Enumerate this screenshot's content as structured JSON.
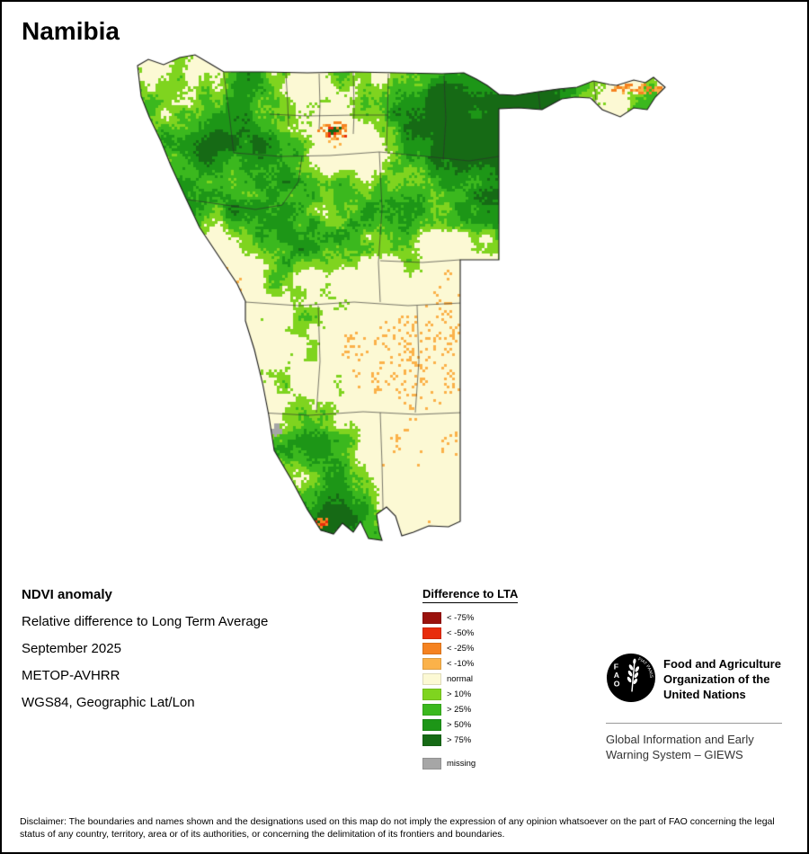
{
  "page": {
    "title": "Namibia"
  },
  "info": {
    "heading": "NDVI anomaly",
    "lines": [
      "Relative difference to Long Term Average",
      "September 2025",
      "METOP-AVHRR",
      "WGS84, Geographic Lat/Lon"
    ]
  },
  "legend": {
    "title": "Difference to LTA",
    "items": [
      {
        "key": "m75",
        "label": "< -75%",
        "color": "#9b120d"
      },
      {
        "key": "m50",
        "label": "< -50%",
        "color": "#e82c0c"
      },
      {
        "key": "m25",
        "label": "< -25%",
        "color": "#f58220"
      },
      {
        "key": "m10",
        "label": "< -10%",
        "color": "#fbb24a"
      },
      {
        "key": "normal",
        "label": "normal",
        "color": "#fcf9d4"
      },
      {
        "key": "p10",
        "label": "> 10%",
        "color": "#7fd41f"
      },
      {
        "key": "p25",
        "label": "> 25%",
        "color": "#3bb81e"
      },
      {
        "key": "p50",
        "label": "> 50%",
        "color": "#1d9617"
      },
      {
        "key": "p75",
        "label": "> 75%",
        "color": "#166a15"
      }
    ],
    "missing": {
      "key": "missing",
      "label": "missing",
      "color": "#a6a6a6"
    }
  },
  "footer": {
    "logo_letters": "FAO",
    "logo_motto": "FIAT PANIS",
    "org_lines": [
      "Food and Agriculture",
      "Organization of the",
      "United Nations"
    ],
    "giews_lines": [
      "Global Information and Early",
      "Warning System – GIEWS"
    ]
  },
  "disclaimer": "Disclaimer: The boundaries and names shown and the designations used on this map do not imply the expression of any opinion whatsoever on the part of FAO concerning the legal status of any country, territory, area or of its authorities, or concerning the delimitation of its frontiers and boundaries."
}
